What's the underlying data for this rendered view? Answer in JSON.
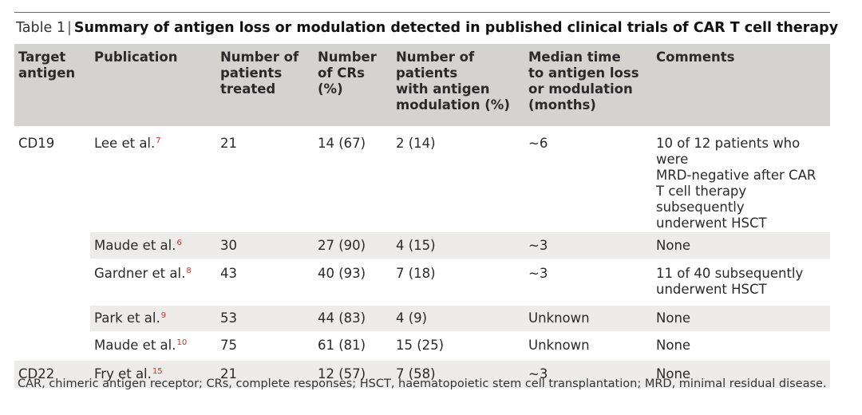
{
  "caption": {
    "prefix": "Table 1",
    "separator": "|",
    "title": "Summary of antigen loss or modulation detected in published clinical trials of CAR T cell therapy"
  },
  "headers": [
    [
      "Target",
      "antigen"
    ],
    [
      "Publication"
    ],
    [
      "Number of",
      "patients",
      "treated"
    ],
    [
      "Number",
      "of CRs",
      "(%)"
    ],
    [
      "Number of",
      "patients",
      "with antigen",
      "modulation (%)"
    ],
    [
      "Median time",
      "to antigen loss",
      "or modulation",
      "(months)"
    ],
    [
      "Comments"
    ]
  ],
  "groups": [
    {
      "target": "CD19"
    },
    {
      "target": "CD22"
    }
  ],
  "rows": [
    {
      "publication": "Lee et al.",
      "ref": "7",
      "treated": "21",
      "crs": "14 (67)",
      "modulation": "2 (14)",
      "median_time": "~6",
      "comments": [
        "10 of 12 patients who were",
        "MRD-negative after CAR",
        "T cell therapy subsequently",
        "underwent HSCT"
      ]
    },
    {
      "publication": "Maude et al.",
      "ref": "6",
      "treated": "30",
      "crs": "27 (90)",
      "modulation": "4 (15)",
      "median_time": "~3",
      "comments": [
        "None"
      ]
    },
    {
      "publication": "Gardner et al.",
      "ref": "8",
      "treated": "43",
      "crs": "40 (93)",
      "modulation": "7 (18)",
      "median_time": "~3",
      "comments": [
        "11 of 40 subsequently",
        "underwent HSCT"
      ]
    },
    {
      "publication": "Park et al.",
      "ref": "9",
      "treated": "53",
      "crs": "44 (83)",
      "modulation": "4 (9)",
      "median_time": "Unknown",
      "comments": [
        "None"
      ]
    },
    {
      "publication": "Maude et al.",
      "ref": "10",
      "treated": "75",
      "crs": "61 (81)",
      "modulation": "15 (25)",
      "median_time": "Unknown",
      "comments": [
        "None"
      ]
    },
    {
      "publication": "Fry et al.",
      "ref": "15",
      "treated": "21",
      "crs": "12 (57)",
      "modulation": "7 (58)",
      "median_time": "~3",
      "comments": [
        "None"
      ]
    }
  ],
  "footnote": "CAR, chimeric antigen receptor; CRs, complete responses; HSCT, haematopoietic stem cell transplantation; MRD, minimal residual disease.",
  "colors": {
    "header_bg": "#d5d3d0",
    "row_shade": "#edecea",
    "ref_color": "#c0392b"
  }
}
